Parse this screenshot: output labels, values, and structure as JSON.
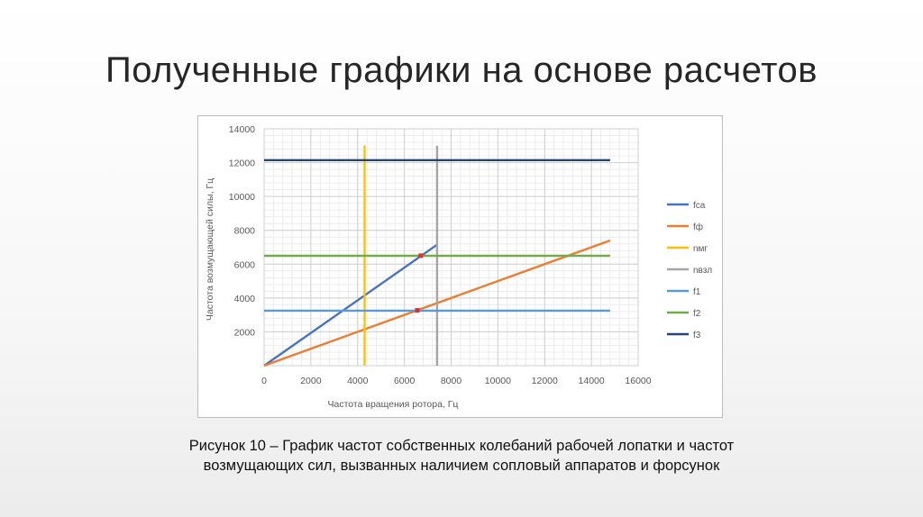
{
  "slide": {
    "title": "Полученные графики на основе расчетов",
    "caption_line1": "Рисунок 10 – График частот собственных колебаний рабочей лопатки и частот",
    "caption_line2": "возмущающих сил, вызванных наличием сопловый аппаратов и форсунок"
  },
  "chart_data": {
    "type": "line",
    "xlabel": "Частота вращения ротора, Гц",
    "ylabel": "Частота возмущающей силы, Гц",
    "xlim": [
      0,
      16000
    ],
    "ylim": [
      0,
      14000
    ],
    "x_ticks": [
      0,
      2000,
      4000,
      6000,
      8000,
      10000,
      12000,
      14000,
      16000
    ],
    "y_ticks": [
      2000,
      4000,
      6000,
      8000,
      10000,
      12000,
      14000
    ],
    "grid": true,
    "legend_position": "right",
    "series": [
      {
        "name": "fca",
        "color": "#4472C4",
        "points": [
          [
            0,
            0
          ],
          [
            7400,
            7150
          ]
        ]
      },
      {
        "name": "fф",
        "color": "#ED7D31",
        "points": [
          [
            0,
            0
          ],
          [
            14800,
            7400
          ]
        ]
      },
      {
        "name": "nмг",
        "color": "#FFC000",
        "points": [
          [
            4300,
            0
          ],
          [
            4300,
            13000
          ]
        ]
      },
      {
        "name": "nвзл",
        "color": "#A5A5A5",
        "points": [
          [
            7400,
            0
          ],
          [
            7400,
            13000
          ]
        ]
      },
      {
        "name": "f1",
        "color": "#5B9BD5",
        "points": [
          [
            0,
            3250
          ],
          [
            14800,
            3250
          ]
        ]
      },
      {
        "name": "f2",
        "color": "#70AD47",
        "points": [
          [
            0,
            6500
          ],
          [
            14800,
            6500
          ]
        ]
      },
      {
        "name": "f3",
        "color": "#264478",
        "points": [
          [
            0,
            12150
          ],
          [
            14800,
            12150
          ]
        ]
      }
    ],
    "markers": [
      {
        "x": 6700,
        "y": 6500,
        "color": "#E03030"
      },
      {
        "x": 6550,
        "y": 3270,
        "color": "#E03030"
      }
    ]
  }
}
